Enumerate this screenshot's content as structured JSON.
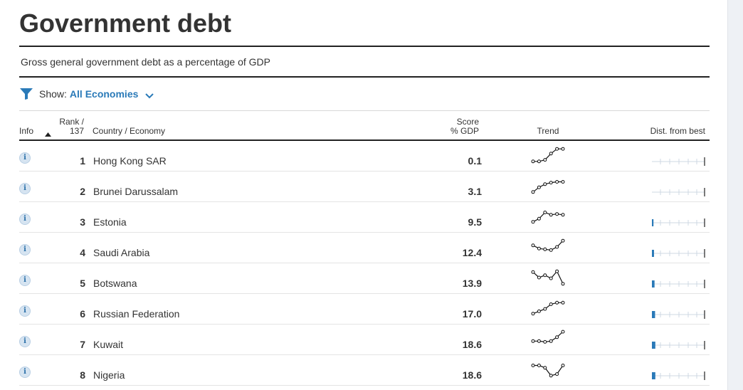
{
  "page": {
    "title": "Government debt",
    "subtitle": "Gross general government debt as a percentage of GDP"
  },
  "filter": {
    "label": "Show:",
    "value": "All Economies",
    "icon": "filter-icon",
    "accent_color": "#2a7ab8"
  },
  "table": {
    "headers": {
      "info": "Info",
      "rank_line1": "Rank /",
      "rank_line2": "137",
      "country": "Country / Economy",
      "score_line1": "Score",
      "score_line2": "% GDP",
      "trend": "Trend",
      "dist": "Dist. from best"
    },
    "sort": "ascending",
    "rows": [
      {
        "rank": "1",
        "country": "Hong Kong SAR",
        "score": "0.1",
        "trend": [
          0.1,
          0.1,
          0.2,
          0.6,
          0.9,
          0.9
        ],
        "dist_fraction": 0.0
      },
      {
        "rank": "2",
        "country": "Brunei Darussalam",
        "score": "3.1",
        "trend": [
          0.1,
          0.4,
          0.6,
          0.7,
          0.75,
          0.75
        ],
        "dist_fraction": 0.0
      },
      {
        "rank": "3",
        "country": "Estonia",
        "score": "9.5",
        "trend": [
          0.15,
          0.35,
          0.75,
          0.6,
          0.65,
          0.6
        ],
        "dist_fraction": 0.03
      },
      {
        "rank": "4",
        "country": "Saudi Arabia",
        "score": "12.4",
        "trend": [
          0.6,
          0.4,
          0.35,
          0.3,
          0.5,
          0.9
        ],
        "dist_fraction": 0.04
      },
      {
        "rank": "5",
        "country": "Botswana",
        "score": "13.9",
        "trend": [
          0.85,
          0.5,
          0.65,
          0.45,
          0.9,
          0.1
        ],
        "dist_fraction": 0.05
      },
      {
        "rank": "6",
        "country": "Russian Federation",
        "score": "17.0",
        "trend": [
          0.15,
          0.3,
          0.45,
          0.75,
          0.85,
          0.85
        ],
        "dist_fraction": 0.06
      },
      {
        "rank": "7",
        "country": "Kuwait",
        "score": "18.6",
        "trend": [
          0.35,
          0.35,
          0.3,
          0.35,
          0.6,
          0.95
        ],
        "dist_fraction": 0.065
      },
      {
        "rank": "8",
        "country": "Nigeria",
        "score": "18.6",
        "trend": [
          0.75,
          0.75,
          0.6,
          0.1,
          0.2,
          0.75
        ],
        "dist_fraction": 0.065
      }
    ]
  },
  "colors": {
    "dist_bar": "#2a7ab8",
    "dist_track": "#cfd8e3",
    "sparkline": "#111111"
  }
}
